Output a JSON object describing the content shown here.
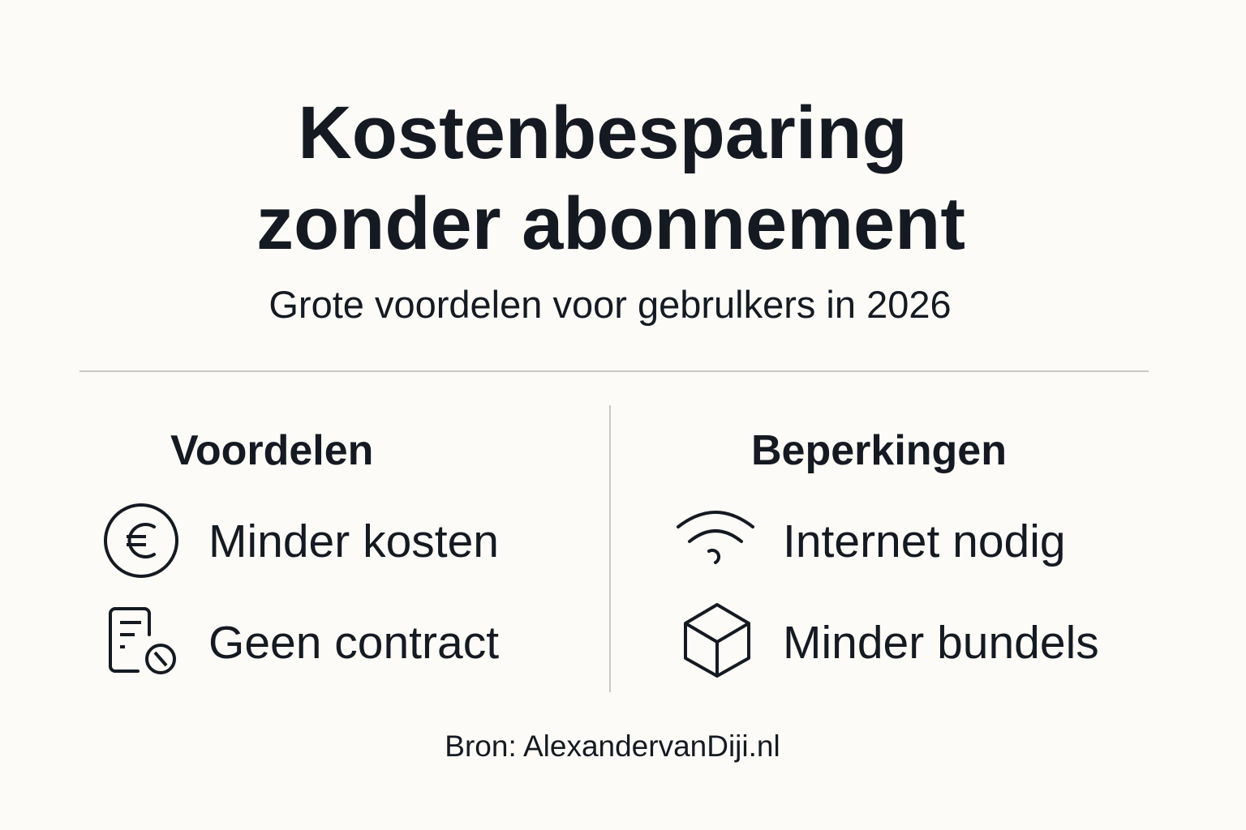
{
  "title": {
    "line1": "Kostenbesparing",
    "line2": "zonder abonnement"
  },
  "subtitle": "Grote voordelen voor gebrulkers in 2026",
  "advantages": {
    "heading": "Voordelen",
    "items": [
      {
        "icon": "euro-coin-icon",
        "label": "Minder kosten"
      },
      {
        "icon": "document-cancel-icon",
        "label": "Geen contract"
      }
    ]
  },
  "limitations": {
    "heading": "Beperkingen",
    "items": [
      {
        "icon": "wifi-icon",
        "label": "Internet nodig"
      },
      {
        "icon": "cube-box-icon",
        "label": "Minder bundels"
      }
    ]
  },
  "source": "Bron: AlexandervanDiji.nl",
  "colors": {
    "background": "#fcfbf7",
    "text": "#151a22",
    "divider": "#c8c8c4"
  }
}
